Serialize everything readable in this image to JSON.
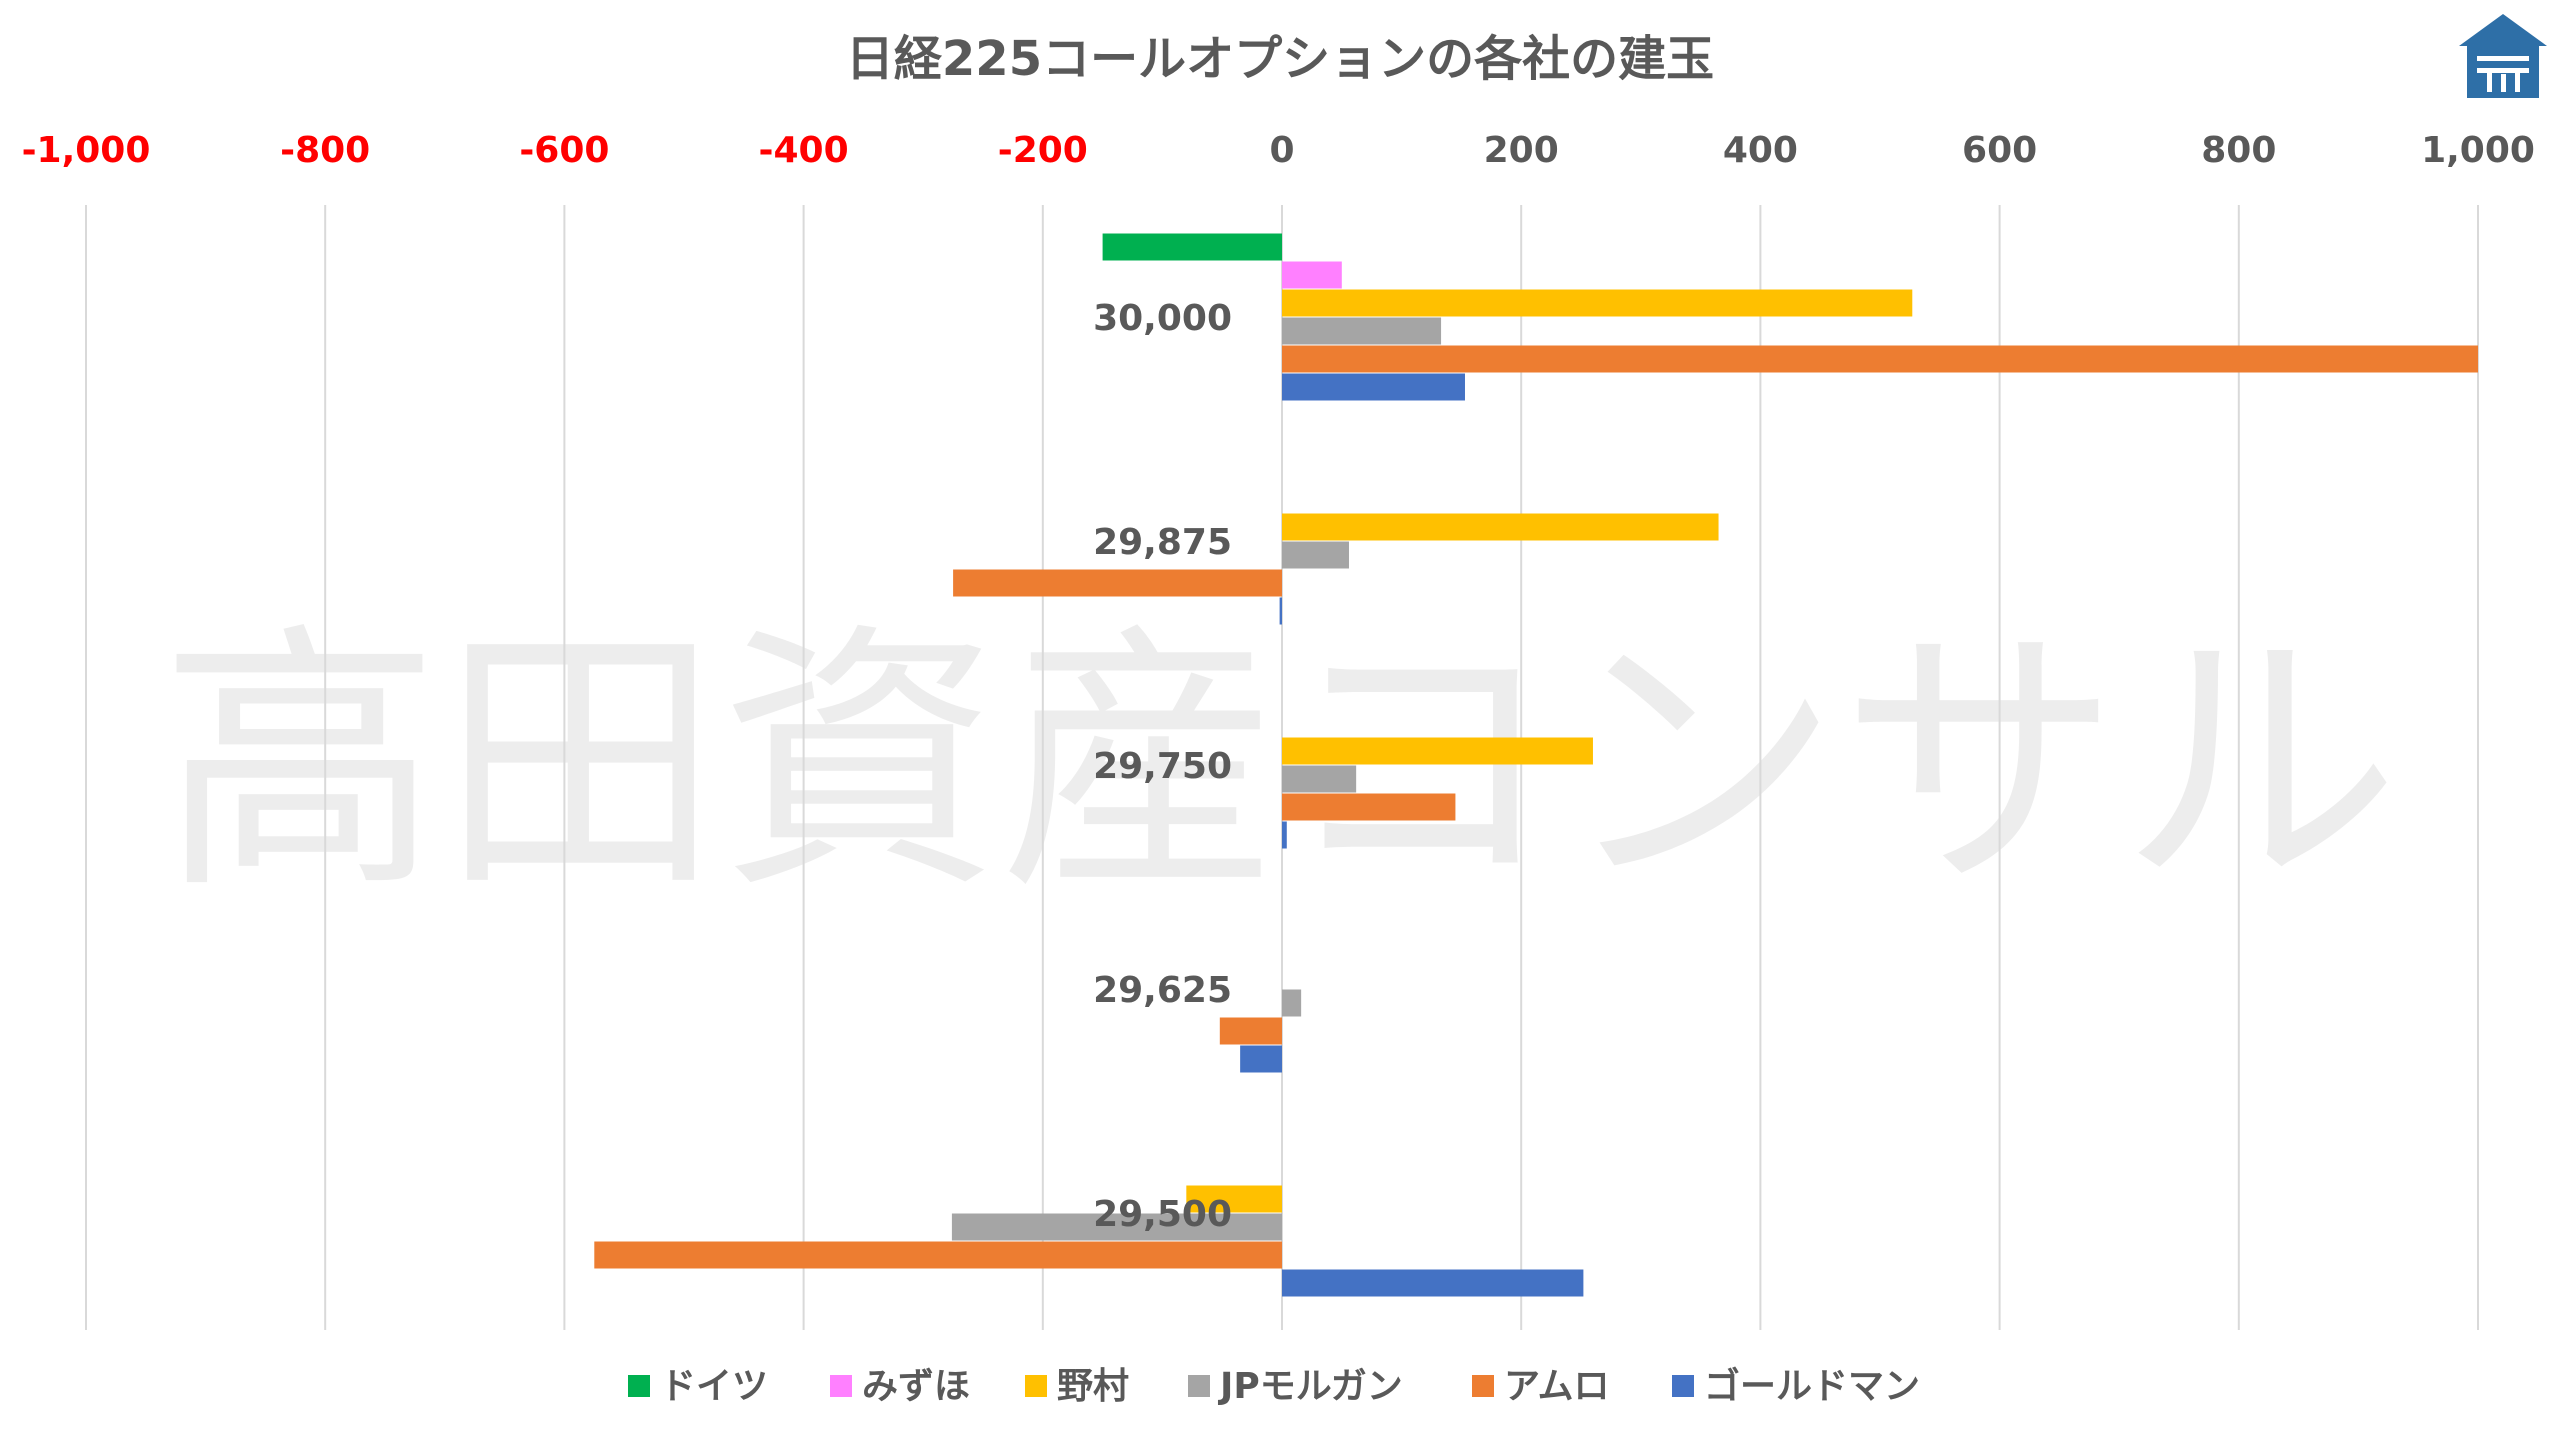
{
  "watermark": "高田資産コンサル",
  "colors": {
    "neg_tick": "#ff0000",
    "pos_tick": "#595959",
    "grid": "#d9d9d9",
    "logo": "#2e6fa7"
  },
  "chart_data": {
    "type": "bar",
    "orientation": "horizontal",
    "title": "日経225コールオプションの各社の建玉",
    "xlim": [
      -1000,
      1000
    ],
    "x_ticks": [
      "-1,000",
      "-800",
      "-600",
      "-400",
      "-200",
      "0",
      "200",
      "400",
      "600",
      "800",
      "1,000"
    ],
    "x_tick_values": [
      -1000,
      -800,
      -600,
      -400,
      -200,
      0,
      200,
      400,
      600,
      800,
      1000
    ],
    "grid": true,
    "legend_position": "bottom",
    "categories": [
      "30,000",
      "29,875",
      "29,750",
      "29,625",
      "29,500"
    ],
    "series": [
      {
        "name": "ドイツ",
        "color": "#00b050",
        "values": [
          -150,
          0,
          0,
          0,
          0
        ]
      },
      {
        "name": "みずほ",
        "color": "#ff80ff",
        "values": [
          50,
          0,
          0,
          0,
          0
        ]
      },
      {
        "name": "野村",
        "color": "#ffc000",
        "values": [
          527,
          365,
          260,
          0,
          -80
        ]
      },
      {
        "name": "JPモルガン",
        "color": "#a5a5a5",
        "values": [
          133,
          56,
          62,
          16,
          -276
        ]
      },
      {
        "name": "アムロ",
        "color": "#ed7d31",
        "values": [
          1000,
          -275,
          145,
          -52,
          -575
        ]
      },
      {
        "name": "ゴールドマン",
        "color": "#4472c4",
        "values": [
          153,
          -2,
          4,
          -35,
          252
        ]
      }
    ]
  }
}
